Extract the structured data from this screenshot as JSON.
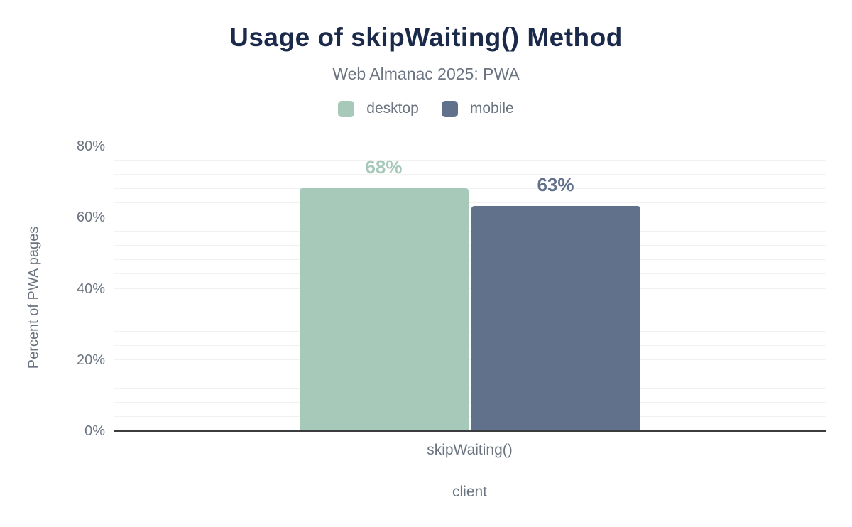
{
  "chart_data": {
    "type": "bar",
    "title": "Usage of skipWaiting() Method",
    "subtitle": "Web Almanac 2025: PWA",
    "categories": [
      "skipWaiting()"
    ],
    "series": [
      {
        "name": "desktop",
        "values": [
          68
        ],
        "labels": [
          "68%"
        ],
        "color": "#a7c9ba"
      },
      {
        "name": "mobile",
        "values": [
          63
        ],
        "labels": [
          "63%"
        ],
        "color": "#61718c"
      }
    ],
    "xlabel": "client",
    "ylabel": "Percent of PWA pages",
    "ylim": [
      0,
      80
    ],
    "ytick_step": 20,
    "ytick_labels": [
      "0%",
      "20%",
      "40%",
      "60%",
      "80%"
    ],
    "minor_grid_step": 4,
    "grid": true,
    "legend_position": "top"
  },
  "colors": {
    "title": "#1b2a4a",
    "muted_text": "#6b7480",
    "gridline": "#f2f2f2",
    "axis_line": "#3a3c3e",
    "background": "#ffffff",
    "desktop_series": "#a7c9ba",
    "mobile_series": "#61718c"
  }
}
